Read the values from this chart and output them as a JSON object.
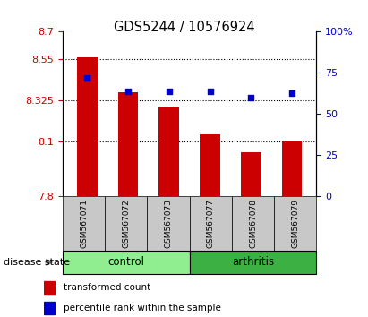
{
  "title": "GDS5244 / 10576924",
  "samples": [
    "GSM567071",
    "GSM567072",
    "GSM567073",
    "GSM567077",
    "GSM567078",
    "GSM567079"
  ],
  "transformed_counts": [
    8.56,
    8.37,
    8.29,
    8.14,
    8.04,
    8.1
  ],
  "percentile_ranks": [
    72,
    64,
    64,
    64,
    60,
    63
  ],
  "ylim_left": [
    7.8,
    8.7
  ],
  "ylim_right": [
    0,
    100
  ],
  "yticks_left": [
    7.8,
    8.1,
    8.325,
    8.55,
    8.7
  ],
  "ytick_labels_left": [
    "7.8",
    "8.1",
    "8.325",
    "8.55",
    "8.7"
  ],
  "yticks_right": [
    0,
    25,
    50,
    75,
    100
  ],
  "ytick_labels_right": [
    "0",
    "25",
    "50",
    "75",
    "100%"
  ],
  "hlines": [
    8.1,
    8.325,
    8.55
  ],
  "groups": [
    {
      "label": "control",
      "start": 0,
      "end": 3,
      "color": "#90EE90"
    },
    {
      "label": "arthritis",
      "start": 3,
      "end": 6,
      "color": "#3CB043"
    }
  ],
  "bar_color": "#CC0000",
  "dot_color": "#0000CC",
  "bar_width": 0.5,
  "sample_box_color": "#C8C8C8",
  "legend_entries": [
    "transformed count",
    "percentile rank within the sample"
  ],
  "disease_state_label": "disease state",
  "left_tick_color": "#CC0000",
  "right_tick_color": "#0000CC",
  "figsize": [
    4.11,
    3.54
  ],
  "dpi": 100
}
